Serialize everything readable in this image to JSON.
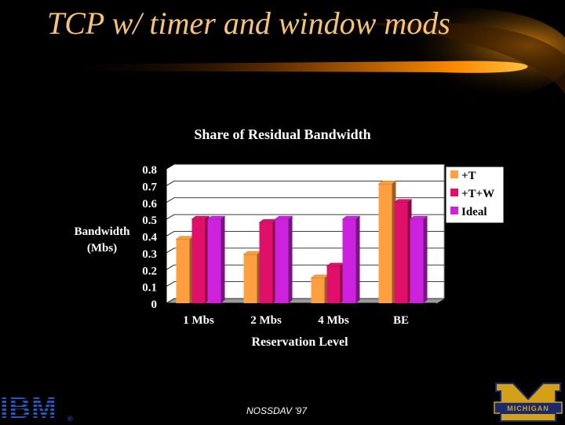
{
  "slide": {
    "title": "TCP w/ timer and window mods",
    "footer": "NOSSDAV '97",
    "logo_left": "IBM",
    "logo_left_mark": "®",
    "logo_right": "MICHIGAN"
  },
  "colors": {
    "background": "#000000",
    "title": "#f5c27a",
    "series": [
      "#ffa040",
      "#e0106a",
      "#cc22dd"
    ],
    "plot_bg": "#ffffff"
  },
  "chart_data": {
    "type": "bar",
    "title": "Share of Residual Bandwidth",
    "xlabel": "Reservation Level",
    "ylabel": "Bandwidth (Mbs)",
    "categories": [
      "1 Mbs",
      "2 Mbs",
      "4 Mbs",
      "BE"
    ],
    "series": [
      {
        "name": "+T",
        "values": [
          0.38,
          0.29,
          0.15,
          0.71
        ]
      },
      {
        "name": "+T+W",
        "values": [
          0.5,
          0.48,
          0.22,
          0.6
        ]
      },
      {
        "name": "Ideal",
        "values": [
          0.5,
          0.5,
          0.5,
          0.5
        ]
      }
    ],
    "ylim": [
      0,
      0.8
    ],
    "yticks": [
      "0",
      "0.1",
      "0.2",
      "0.3",
      "0.4",
      "0.5",
      "0.6",
      "0.7",
      "0.8"
    ],
    "grid": true,
    "legend": "right",
    "style": "3d"
  }
}
